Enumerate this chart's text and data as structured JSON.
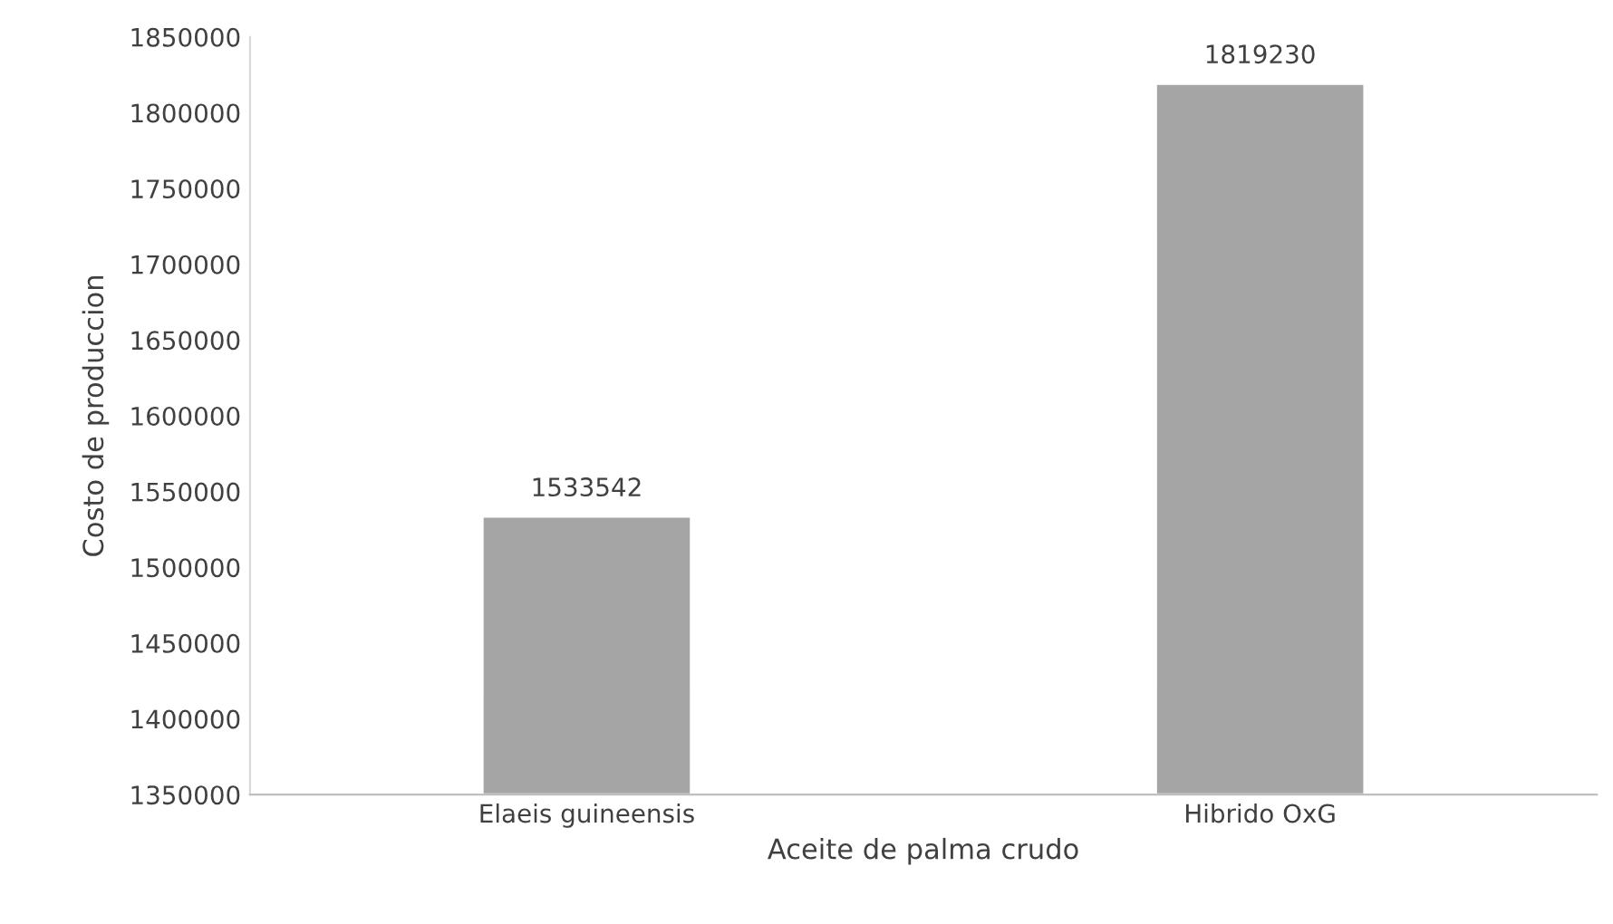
{
  "chart_data": {
    "type": "bar",
    "xlabel": "Aceite de palma crudo",
    "ylabel": "Costo de produccion",
    "categories": [
      "Elaeis guineensis",
      "Hibrido OxG"
    ],
    "values": [
      1533542,
      1819230
    ],
    "color": "#a5a5a5",
    "data_labels": true,
    "ylim": [
      1350000,
      1850000
    ],
    "yticks": [
      1350000,
      1400000,
      1450000,
      1500000,
      1550000,
      1600000,
      1650000,
      1700000,
      1750000,
      1800000,
      1850000
    ],
    "grid": false
  }
}
